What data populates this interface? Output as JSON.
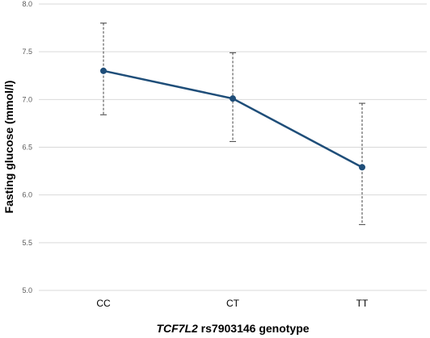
{
  "chart_data": {
    "type": "line",
    "categories": [
      "CC",
      "CT",
      "TT"
    ],
    "series": [
      {
        "values": [
          7.3,
          7.01,
          6.29
        ],
        "err_lower": [
          6.84,
          6.56,
          5.69
        ],
        "err_upper": [
          7.8,
          7.49,
          6.96
        ]
      }
    ],
    "xlabel_italic": "TCF7L2",
    "xlabel_rest": " rs7903146 genotype",
    "ylabel": "Fasting glucose (mmol/l)",
    "ylim": [
      5.0,
      8.0
    ],
    "yticks": [
      "5.0",
      "5.5",
      "6.0",
      "6.5",
      "7.0",
      "7.5",
      "8.0"
    ],
    "grid": true,
    "colors": {
      "series": "#1f4e79",
      "marker": "#1f4e79",
      "grid": "#d9d9d9"
    }
  }
}
